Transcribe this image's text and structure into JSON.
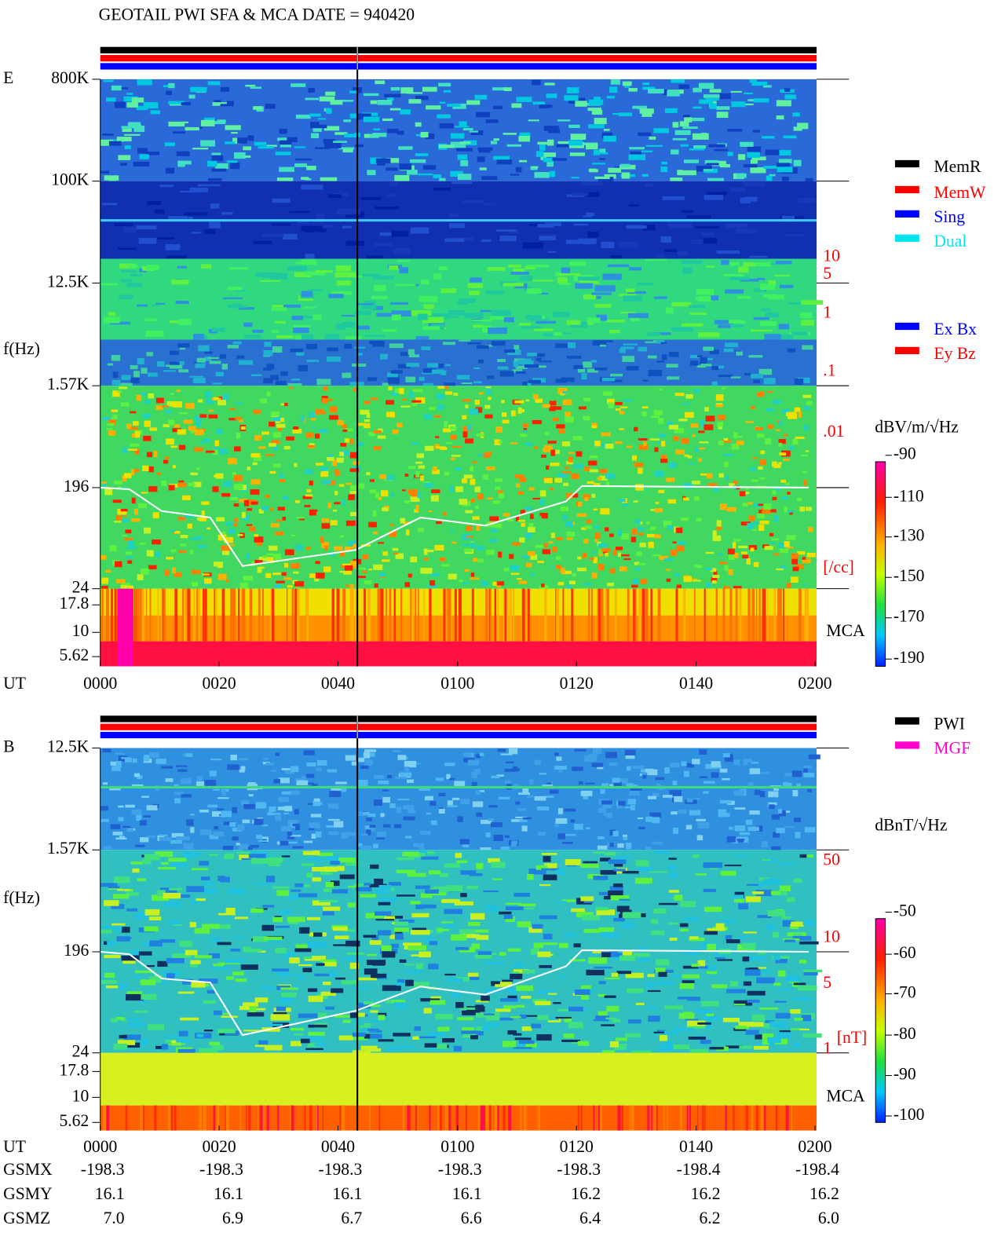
{
  "title": "GEOTAIL  PWI SFA & MCA   DATE = 940420",
  "panels": [
    {
      "label": "E",
      "y_axis_label": "f(Hz)",
      "freq_labels": [
        "800K",
        "100K",
        "12.5K",
        "1.57K",
        "196",
        "24",
        "17.8",
        "10",
        "5.62"
      ],
      "density_labels": [
        "10",
        "5",
        "1",
        ".1",
        ".01",
        "[/cc]"
      ],
      "mca_label": "MCA",
      "x_axis_name": "UT",
      "time_labels": [
        "0000",
        "0020",
        "0040",
        "0100",
        "0120",
        "0140",
        "0200"
      ],
      "legend": [
        {
          "name": "MemR",
          "color": "#000000"
        },
        {
          "name": "MemW",
          "color": "#ff0000"
        },
        {
          "name": "Sing",
          "color": "#0000ff"
        },
        {
          "name": "Dual",
          "color": "#00e5ee"
        }
      ],
      "legend2": [
        {
          "name": "Ex Bx",
          "color": "#0000ff"
        },
        {
          "name": "Ey Bz",
          "color": "#ff0000"
        }
      ],
      "colorbar_unit": "dBV/m/√Hz",
      "colorbar_ticks": [
        "-90",
        "-110",
        "-130",
        "-150",
        "-170",
        "-190"
      ]
    },
    {
      "label": "B",
      "y_axis_label": "f(Hz)",
      "freq_labels": [
        "12.5K",
        "1.57K",
        "196",
        "24",
        "17.8",
        "10",
        "5.62"
      ],
      "density_labels": [
        "50",
        "10",
        "5",
        "1",
        "[nT]"
      ],
      "mca_label": "MCA",
      "x_axis_name": "UT",
      "time_labels": [
        "0000",
        "0020",
        "0040",
        "0100",
        "0120",
        "0140",
        "0200"
      ],
      "legend": [
        {
          "name": "PWI",
          "color": "#000000"
        },
        {
          "name": "MGF",
          "color": "#ff00cc"
        }
      ],
      "colorbar_unit": "dBnT/√Hz",
      "colorbar_ticks": [
        "-50",
        "-60",
        "-70",
        "-80",
        "-90",
        "-100"
      ]
    }
  ],
  "ephemeris": [
    {
      "name": "GSMX",
      "values": [
        "-198.3",
        "-198.3",
        "-198.3",
        "-198.3",
        "-198.3",
        "-198.4",
        "-198.4"
      ]
    },
    {
      "name": "GSMY",
      "values": [
        "16.1",
        "16.1",
        "16.1",
        "16.1",
        "16.2",
        "16.2",
        "16.2"
      ]
    },
    {
      "name": "GSMZ",
      "values": [
        "7.0",
        "6.9",
        "6.7",
        "6.6",
        "6.4",
        "6.2",
        "6.0"
      ]
    }
  ]
}
